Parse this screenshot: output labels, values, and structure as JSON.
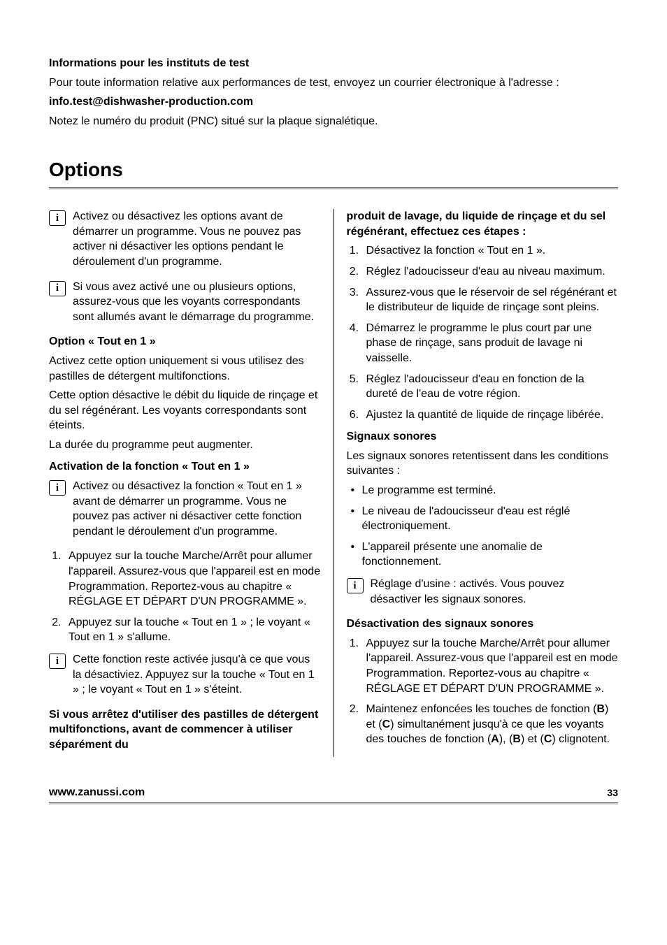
{
  "top": {
    "heading": "Informations pour les instituts de test",
    "line1": "Pour toute information relative aux performances de test, envoyez un courrier électronique à l'adresse :",
    "email": "info.test@dishwasher-production.com",
    "line2": "Notez le numéro du produit (PNC) situé sur la plaque signalétique."
  },
  "options_title": "Options",
  "left": {
    "info1": "Activez ou désactivez les options avant de démarrer un programme. Vous ne pouvez pas activer ni désactiver les options pendant le déroulement d'un programme.",
    "info2": "Si vous avez activé une ou plusieurs options, assurez-vous que les voyants correspondants sont allumés avant le démarrage du programme.",
    "h1": "Option « Tout en 1 »",
    "p1": "Activez cette option uniquement si vous utilisez des pastilles de détergent multifonctions.",
    "p2": "Cette option désactive le débit du liquide de rinçage et du sel régénérant. Les voyants correspondants sont éteints.",
    "p3": "La durée du programme peut augmenter.",
    "h2": "Activation de la fonction « Tout en 1 »",
    "info3": "Activez ou désactivez la fonction « Tout en 1 » avant de démarrer un programme. Vous ne pouvez pas activer ni désactiver cette fonction pendant le déroulement d'un programme.",
    "ol1_1": "Appuyez sur la touche Marche/Arrêt pour allumer l'appareil. Assurez-vous que l'appareil est en mode Programmation. Reportez-vous au chapitre « RÉGLAGE ET DÉPART D'UN PROGRAMME ».",
    "ol1_2": "Appuyez sur la touche « Tout en 1 » ; le voyant « Tout en 1 » s'allume.",
    "info4": "Cette fonction reste activée jusqu'à ce que vous la désactiviez. Appuyez sur la touche « Tout en 1 » ; le voyant « Tout en 1 » s'éteint.",
    "h3": "Si vous arrêtez d'utiliser des pastilles de détergent multifonctions, avant de commencer à utiliser séparément du"
  },
  "right": {
    "h_cont": "produit de lavage, du liquide de rinçage et du sel régénérant, effectuez ces étapes :",
    "ol2_1": "Désactivez la fonction « Tout en 1 ».",
    "ol2_2": "Réglez l'adoucisseur d'eau au niveau maximum.",
    "ol2_3": "Assurez-vous que le réservoir de sel régénérant et le distributeur de liquide de rinçage sont pleins.",
    "ol2_4": "Démarrez le programme le plus court par une phase de rinçage, sans produit de lavage ni vaisselle.",
    "ol2_5": "Réglez l'adoucisseur d'eau en fonction de la dureté de l'eau de votre région.",
    "ol2_6": "Ajustez la quantité de liquide de rinçage libérée.",
    "h4": "Signaux sonores",
    "p4": "Les signaux sonores retentissent dans les conditions suivantes :",
    "ul_1": "Le programme est terminé.",
    "ul_2": "Le niveau de l'adoucisseur d'eau est réglé électroniquement.",
    "ul_3": "L'appareil présente une anomalie de fonctionnement.",
    "info5": "Réglage d'usine : activés. Vous pouvez désactiver les signaux sonores.",
    "h5": "Désactivation des signaux sonores",
    "ol3_1": "Appuyez sur la touche Marche/Arrêt pour allumer l'appareil. Assurez-vous que l'appareil est en mode Programmation. Reportez-vous au chapitre « RÉGLAGE ET DÉPART D'UN PROGRAMME ».",
    "ol3_2_a": "Maintenez enfoncées les touches de fonction (",
    "ol3_2_b": ") et (",
    "ol3_2_c": ") simultanément jusqu'à ce que les voyants des touches de fonction (",
    "ol3_2_d": "), (",
    "ol3_2_e": ") et (",
    "ol3_2_f": ") clignotent.",
    "B": "B",
    "C": "C",
    "A": "A"
  },
  "footer": {
    "url": "www.zanussi.com",
    "page": "33"
  },
  "info_glyph": "i"
}
